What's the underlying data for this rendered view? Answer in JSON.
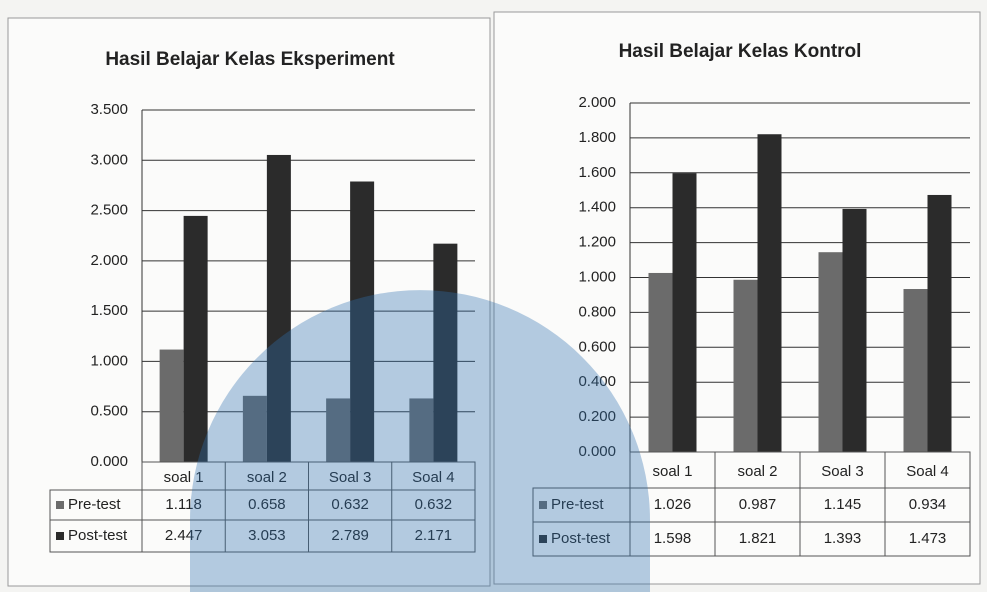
{
  "chart_data": [
    {
      "type": "bar",
      "title": "Hasil Belajar Kelas Eksperiment",
      "categories": [
        "soal 1",
        "soal 2",
        "Soal 3",
        "Soal 4"
      ],
      "series": [
        {
          "name": "Pre-test",
          "color": "#6b6b6b",
          "values": [
            1.118,
            0.658,
            0.632,
            0.632
          ]
        },
        {
          "name": "Post-test",
          "color": "#2b2b2b",
          "values": [
            2.447,
            3.053,
            2.789,
            2.171
          ]
        }
      ],
      "ylim": [
        0,
        3.5
      ],
      "yticks": [
        {
          "value": 0,
          "label": "0.000"
        },
        {
          "value": 0.5,
          "label": "0.500"
        },
        {
          "value": 1,
          "label": "1.000"
        },
        {
          "value": 1.5,
          "label": "1.500"
        },
        {
          "value": 2,
          "label": "2.000"
        },
        {
          "value": 2.5,
          "label": "2.500"
        },
        {
          "value": 3,
          "label": "3.000"
        },
        {
          "value": 3.5,
          "label": "3.500"
        }
      ],
      "grid": true
    },
    {
      "type": "bar",
      "title": "Hasil Belajar Kelas Kontrol",
      "categories": [
        "soal 1",
        "soal 2",
        "Soal 3",
        "Soal 4"
      ],
      "series": [
        {
          "name": "Pre-test",
          "color": "#6b6b6b",
          "values": [
            1.026,
            0.987,
            1.145,
            0.934
          ]
        },
        {
          "name": "Post-test",
          "color": "#2b2b2b",
          "values": [
            1.598,
            1.821,
            1.393,
            1.473
          ]
        }
      ],
      "ylim": [
        0,
        2
      ],
      "yticks": [
        {
          "value": 0,
          "label": "0.000"
        },
        {
          "value": 0.2,
          "label": "0.200"
        },
        {
          "value": 0.4,
          "label": "0.400"
        },
        {
          "value": 0.6,
          "label": "0.600"
        },
        {
          "value": 0.8,
          "label": "0.800"
        },
        {
          "value": 1,
          "label": "1.000"
        },
        {
          "value": 1.2,
          "label": "1.200"
        },
        {
          "value": 1.4,
          "label": "1.400"
        },
        {
          "value": 1.6,
          "label": "1.600"
        },
        {
          "value": 1.8,
          "label": "1.800"
        },
        {
          "value": 2,
          "label": "2.000"
        }
      ],
      "grid": true
    }
  ]
}
